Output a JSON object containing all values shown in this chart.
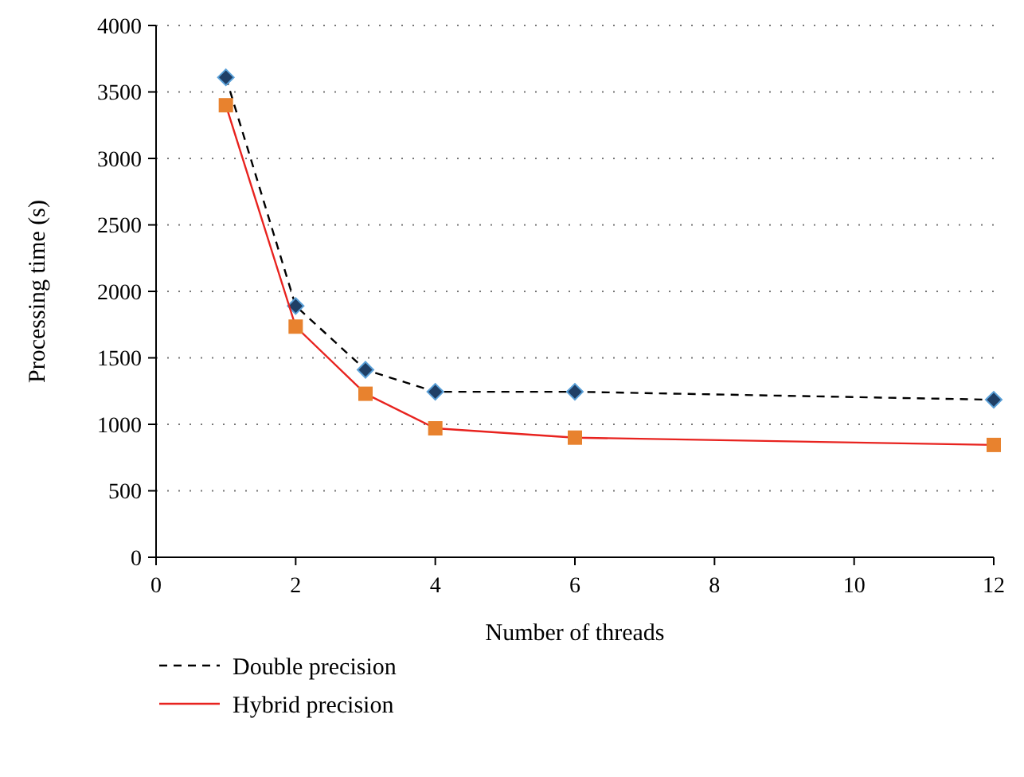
{
  "chart_data": {
    "type": "line",
    "xlabel": "Number of threads",
    "ylabel": "Processing time (s)",
    "x": [
      1,
      2,
      3,
      4,
      6,
      12
    ],
    "series": [
      {
        "name": "Double precision",
        "color": "#000000",
        "line_style": "dashed",
        "marker": "diamond",
        "colors": [
          "#1f3f66",
          "#1f3f66",
          "#1f3f66",
          "#1f3f66",
          "#1f3f66",
          "#1f3f66"
        ],
        "values": [
          3610,
          1890,
          1410,
          1245,
          1245,
          1185
        ]
      },
      {
        "name": "Hybrid precision",
        "color": "#e8231f",
        "line_style": "solid",
        "marker": "square",
        "colors": [
          "#e8822e",
          "#e8822e",
          "#e8822e",
          "#e8822e",
          "#e8822e",
          "#e8822e"
        ],
        "values": [
          3400,
          1735,
          1230,
          970,
          900,
          845
        ]
      }
    ],
    "xlim": [
      0,
      12
    ],
    "xticks": [
      0,
      2,
      4,
      6,
      8,
      10,
      12
    ],
    "ylim": [
      0,
      4000
    ],
    "yticks": [
      0,
      500,
      1000,
      1500,
      2000,
      2500,
      3000,
      3500,
      4000
    ],
    "grid": "y",
    "legend": "bottom left"
  }
}
